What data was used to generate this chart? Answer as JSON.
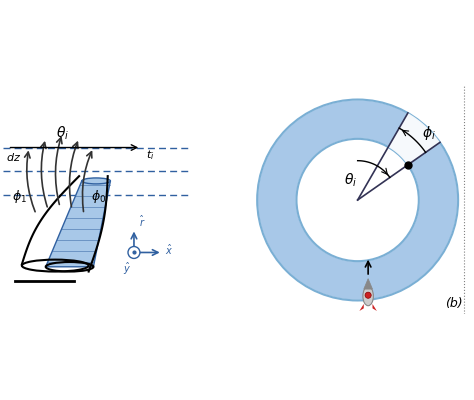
{
  "bg_color": "#ffffff",
  "blue_light": "#a8c8e8",
  "blue_mid": "#7aafd4",
  "blue_dark": "#4a7faf",
  "blue_line": "#3060a0",
  "annot_color": "#1a1a2e",
  "label_b": "(b)",
  "ring_outer": 1.15,
  "ring_inner": 0.7,
  "theta_i_deg": 55,
  "phi_i_deg": 25,
  "coord_color": "#3060a0"
}
